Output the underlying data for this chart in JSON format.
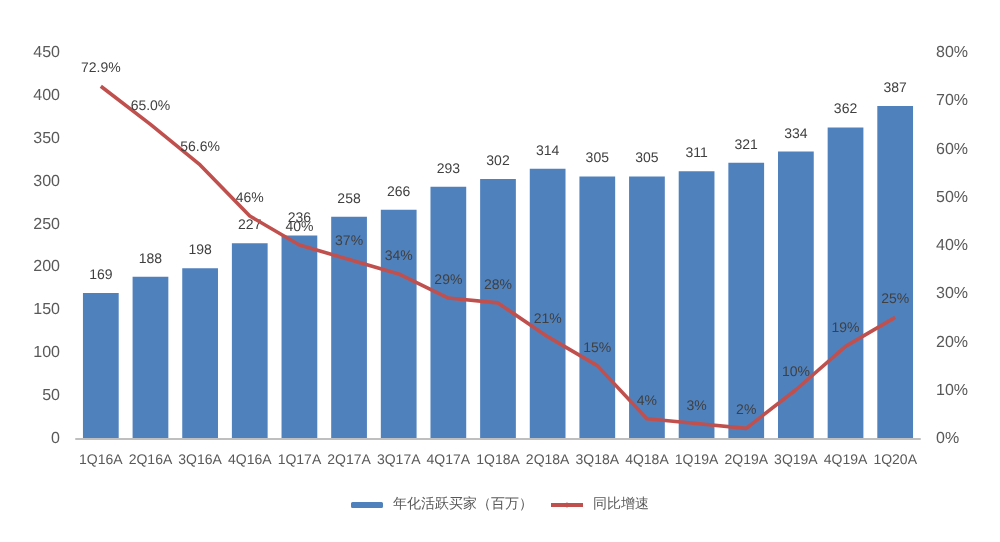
{
  "chart_data": {
    "type": "bar",
    "categories": [
      "1Q16A",
      "2Q16A",
      "3Q16A",
      "4Q16A",
      "1Q17A",
      "2Q17A",
      "3Q17A",
      "4Q17A",
      "1Q18A",
      "2Q18A",
      "3Q18A",
      "4Q18A",
      "1Q19A",
      "2Q19A",
      "3Q19A",
      "4Q19A",
      "1Q20A"
    ],
    "series": [
      {
        "name": "年化活跃买家（百万）",
        "color": "#4f81bd",
        "values": [
          169,
          188,
          198,
          227,
          236,
          258,
          266,
          293,
          302,
          314,
          305,
          305,
          311,
          321,
          334,
          362,
          387
        ],
        "value_labels": [
          "169",
          "188",
          "198",
          "227",
          "236",
          "258",
          "266",
          "293",
          "302",
          "314",
          "305",
          "305",
          "311",
          "321",
          "334",
          "362",
          "387"
        ]
      },
      {
        "name": "同比增速",
        "type": "line",
        "axis": "y2",
        "color": "#c0504d",
        "values": [
          72.9,
          65.0,
          56.6,
          46,
          40,
          37,
          34,
          29,
          28,
          21,
          15,
          4,
          3,
          2,
          10,
          19,
          25
        ],
        "value_labels": [
          "72.9%",
          "65.0%",
          "56.6%",
          "46%",
          "40%",
          "37%",
          "34%",
          "29%",
          "28%",
          "21%",
          "15%",
          "4%",
          "3%",
          "2%",
          "10%",
          "19%",
          "25%"
        ]
      }
    ],
    "ylim": [
      0,
      450
    ],
    "yticks": [
      0,
      50,
      100,
      150,
      200,
      250,
      300,
      350,
      400,
      450
    ],
    "y2lim": [
      0,
      80
    ],
    "y2ticks": [
      {
        "value": 0,
        "label": "0%"
      },
      {
        "value": 10,
        "label": "10%"
      },
      {
        "value": 20,
        "label": "20%"
      },
      {
        "value": 30,
        "label": "30%"
      },
      {
        "value": 40,
        "label": "40%"
      },
      {
        "value": 50,
        "label": "50%"
      },
      {
        "value": 60,
        "label": "60%"
      },
      {
        "value": 70,
        "label": "70%"
      },
      {
        "value": 80,
        "label": "80%"
      }
    ],
    "grid": false,
    "legend": "bottom",
    "marker": "none",
    "line_style": "solid"
  }
}
